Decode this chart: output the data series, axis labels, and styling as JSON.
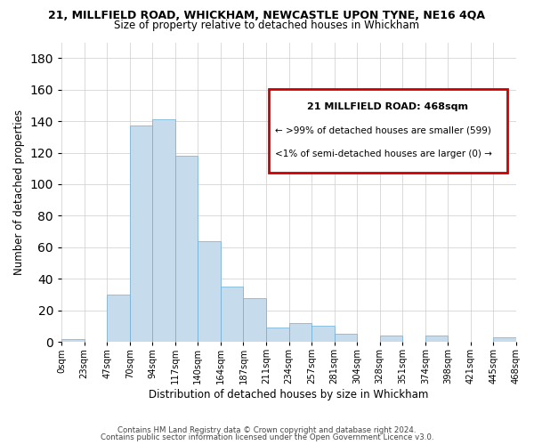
{
  "title_line1": "21, MILLFIELD ROAD, WHICKHAM, NEWCASTLE UPON TYNE, NE16 4QA",
  "title_line2": "Size of property relative to detached houses in Whickham",
  "xlabel": "Distribution of detached houses by size in Whickham",
  "ylabel": "Number of detached properties",
  "bin_labels": [
    "0sqm",
    "23sqm",
    "47sqm",
    "70sqm",
    "94sqm",
    "117sqm",
    "140sqm",
    "164sqm",
    "187sqm",
    "211sqm",
    "234sqm",
    "257sqm",
    "281sqm",
    "304sqm",
    "328sqm",
    "351sqm",
    "374sqm",
    "398sqm",
    "421sqm",
    "445sqm",
    "468sqm"
  ],
  "bar_values": [
    2,
    0,
    30,
    137,
    141,
    118,
    64,
    35,
    28,
    9,
    12,
    10,
    5,
    0,
    4,
    0,
    4,
    0,
    0,
    3
  ],
  "bar_color": "#c6dcec",
  "bar_edge_color": "#6baed6",
  "ylim": [
    0,
    190
  ],
  "yticks": [
    0,
    20,
    40,
    60,
    80,
    100,
    120,
    140,
    160,
    180
  ],
  "annotation_title": "21 MILLFIELD ROAD: 468sqm",
  "annotation_line2": "← >99% of detached houses are smaller (599)",
  "annotation_line3": "<1% of semi-detached houses are larger (0) →",
  "annotation_box_color": "#cc0000",
  "footer_line1": "Contains HM Land Registry data © Crown copyright and database right 2024.",
  "footer_line2": "Contains public sector information licensed under the Open Government Licence v3.0.",
  "background_color": "#ffffff",
  "grid_color": "#cccccc"
}
